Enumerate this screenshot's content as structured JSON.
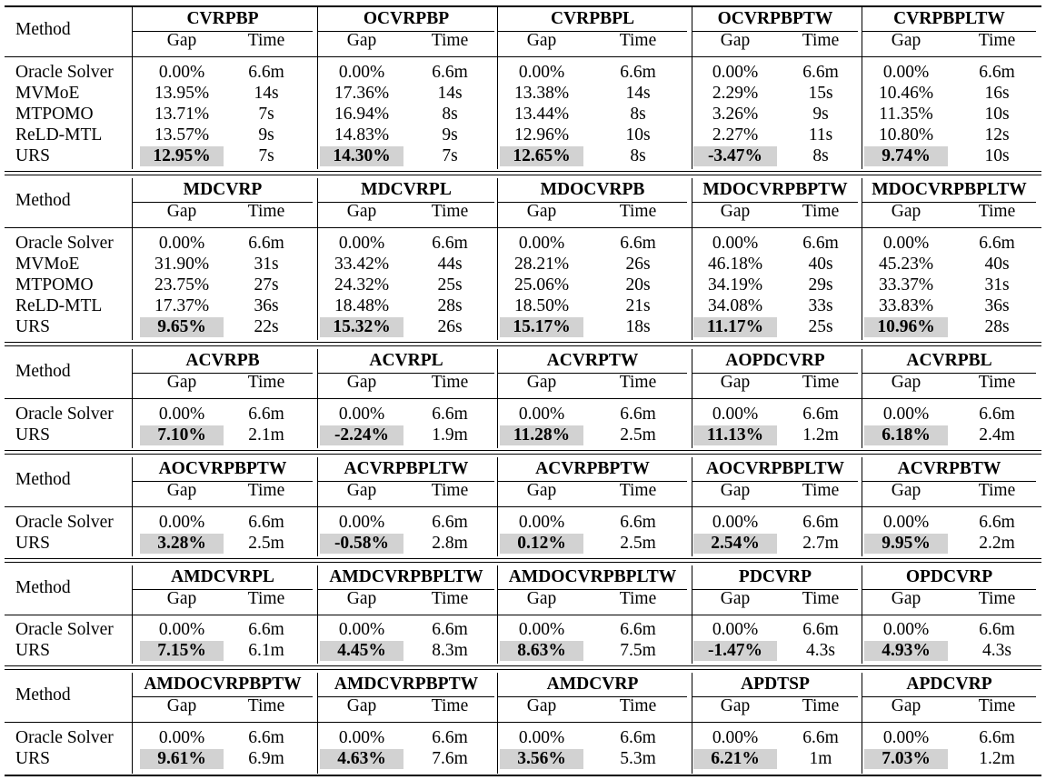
{
  "headers": {
    "method": "Method",
    "gap": "Gap",
    "time": "Time"
  },
  "sections": [
    {
      "groups": [
        "CVRPBP",
        "OCVRPBP",
        "CVRPBPL",
        "OCVRPBPTW",
        "CVRPBPLTW"
      ],
      "rows": [
        {
          "method": "Oracle Solver",
          "cells": [
            [
              "0.00%",
              "6.6m"
            ],
            [
              "0.00%",
              "6.6m"
            ],
            [
              "0.00%",
              "6.6m"
            ],
            [
              "0.00%",
              "6.6m"
            ],
            [
              "0.00%",
              "6.6m"
            ]
          ],
          "best": false
        },
        {
          "method": "MVMoE",
          "cells": [
            [
              "13.95%",
              "14s"
            ],
            [
              "17.36%",
              "14s"
            ],
            [
              "13.38%",
              "14s"
            ],
            [
              "2.29%",
              "15s"
            ],
            [
              "10.46%",
              "16s"
            ]
          ],
          "best": false
        },
        {
          "method": "MTPOMO",
          "cells": [
            [
              "13.71%",
              "7s"
            ],
            [
              "16.94%",
              "8s"
            ],
            [
              "13.44%",
              "8s"
            ],
            [
              "3.26%",
              "9s"
            ],
            [
              "11.35%",
              "10s"
            ]
          ],
          "best": false
        },
        {
          "method": "ReLD-MTL",
          "cells": [
            [
              "13.57%",
              "9s"
            ],
            [
              "14.83%",
              "9s"
            ],
            [
              "12.96%",
              "10s"
            ],
            [
              "2.27%",
              "11s"
            ],
            [
              "10.80%",
              "12s"
            ]
          ],
          "best": false
        },
        {
          "method": "URS",
          "cells": [
            [
              "12.95%",
              "7s"
            ],
            [
              "14.30%",
              "7s"
            ],
            [
              "12.65%",
              "8s"
            ],
            [
              "-3.47%",
              "8s"
            ],
            [
              "9.74%",
              "10s"
            ]
          ],
          "best": true
        }
      ]
    },
    {
      "groups": [
        "MDCVRP",
        "MDCVRPL",
        "MDOCVRPB",
        "MDOCVRPBPTW",
        "MDOCVRPBPLTW"
      ],
      "rows": [
        {
          "method": "Oracle Solver",
          "cells": [
            [
              "0.00%",
              "6.6m"
            ],
            [
              "0.00%",
              "6.6m"
            ],
            [
              "0.00%",
              "6.6m"
            ],
            [
              "0.00%",
              "6.6m"
            ],
            [
              "0.00%",
              "6.6m"
            ]
          ],
          "best": false
        },
        {
          "method": "MVMoE",
          "cells": [
            [
              "31.90%",
              "31s"
            ],
            [
              "33.42%",
              "44s"
            ],
            [
              "28.21%",
              "26s"
            ],
            [
              "46.18%",
              "40s"
            ],
            [
              "45.23%",
              "40s"
            ]
          ],
          "best": false
        },
        {
          "method": "MTPOMO",
          "cells": [
            [
              "23.75%",
              "27s"
            ],
            [
              "24.32%",
              "25s"
            ],
            [
              "25.06%",
              "20s"
            ],
            [
              "34.19%",
              "29s"
            ],
            [
              "33.37%",
              "31s"
            ]
          ],
          "best": false
        },
        {
          "method": "ReLD-MTL",
          "cells": [
            [
              "17.37%",
              "36s"
            ],
            [
              "18.48%",
              "28s"
            ],
            [
              "18.50%",
              "21s"
            ],
            [
              "34.08%",
              "33s"
            ],
            [
              "33.83%",
              "36s"
            ]
          ],
          "best": false
        },
        {
          "method": "URS",
          "cells": [
            [
              "9.65%",
              "22s"
            ],
            [
              "15.32%",
              "26s"
            ],
            [
              "15.17%",
              "18s"
            ],
            [
              "11.17%",
              "25s"
            ],
            [
              "10.96%",
              "28s"
            ]
          ],
          "best": true
        }
      ]
    },
    {
      "groups": [
        "ACVRPB",
        "ACVRPL",
        "ACVRPTW",
        "AOPDCVRP",
        "ACVRPBL"
      ],
      "rows": [
        {
          "method": "Oracle Solver",
          "cells": [
            [
              "0.00%",
              "6.6m"
            ],
            [
              "0.00%",
              "6.6m"
            ],
            [
              "0.00%",
              "6.6m"
            ],
            [
              "0.00%",
              "6.6m"
            ],
            [
              "0.00%",
              "6.6m"
            ]
          ],
          "best": false
        },
        {
          "method": "URS",
          "cells": [
            [
              "7.10%",
              "2.1m"
            ],
            [
              "-2.24%",
              "1.9m"
            ],
            [
              "11.28%",
              "2.5m"
            ],
            [
              "11.13%",
              "1.2m"
            ],
            [
              "6.18%",
              "2.4m"
            ]
          ],
          "best": true
        }
      ]
    },
    {
      "groups": [
        "AOCVRPBPTW",
        "ACVRPBPLTW",
        "ACVRPBPTW",
        "AOCVRPBPLTW",
        "ACVRPBTW"
      ],
      "rows": [
        {
          "method": "Oracle Solver",
          "cells": [
            [
              "0.00%",
              "6.6m"
            ],
            [
              "0.00%",
              "6.6m"
            ],
            [
              "0.00%",
              "6.6m"
            ],
            [
              "0.00%",
              "6.6m"
            ],
            [
              "0.00%",
              "6.6m"
            ]
          ],
          "best": false
        },
        {
          "method": "URS",
          "cells": [
            [
              "3.28%",
              "2.5m"
            ],
            [
              "-0.58%",
              "2.8m"
            ],
            [
              "0.12%",
              "2.5m"
            ],
            [
              "2.54%",
              "2.7m"
            ],
            [
              "9.95%",
              "2.2m"
            ]
          ],
          "best": true
        }
      ]
    },
    {
      "groups": [
        "AMDCVRPL",
        "AMDCVRPBPLTW",
        "AMDOCVRPBPLTW",
        "PDCVRP",
        "OPDCVRP"
      ],
      "rows": [
        {
          "method": "Oracle Solver",
          "cells": [
            [
              "0.00%",
              "6.6m"
            ],
            [
              "0.00%",
              "6.6m"
            ],
            [
              "0.00%",
              "6.6m"
            ],
            [
              "0.00%",
              "6.6m"
            ],
            [
              "0.00%",
              "6.6m"
            ]
          ],
          "best": false
        },
        {
          "method": "URS",
          "cells": [
            [
              "7.15%",
              "6.1m"
            ],
            [
              "4.45%",
              "8.3m"
            ],
            [
              "8.63%",
              "7.5m"
            ],
            [
              "-1.47%",
              "4.3s"
            ],
            [
              "4.93%",
              "4.3s"
            ]
          ],
          "best": true
        }
      ]
    },
    {
      "groups": [
        "AMDOCVRPBPTW",
        "AMDCVRPBPTW",
        "AMDCVRP",
        "APDTSP",
        "APDCVRP"
      ],
      "rows": [
        {
          "method": "Oracle Solver",
          "cells": [
            [
              "0.00%",
              "6.6m"
            ],
            [
              "0.00%",
              "6.6m"
            ],
            [
              "0.00%",
              "6.6m"
            ],
            [
              "0.00%",
              "6.6m"
            ],
            [
              "0.00%",
              "6.6m"
            ]
          ],
          "best": false
        },
        {
          "method": "URS",
          "cells": [
            [
              "9.61%",
              "6.9m"
            ],
            [
              "4.63%",
              "7.6m"
            ],
            [
              "3.56%",
              "5.3m"
            ],
            [
              "6.21%",
              "1m"
            ],
            [
              "7.03%",
              "1.2m"
            ]
          ],
          "best": true
        }
      ]
    }
  ]
}
